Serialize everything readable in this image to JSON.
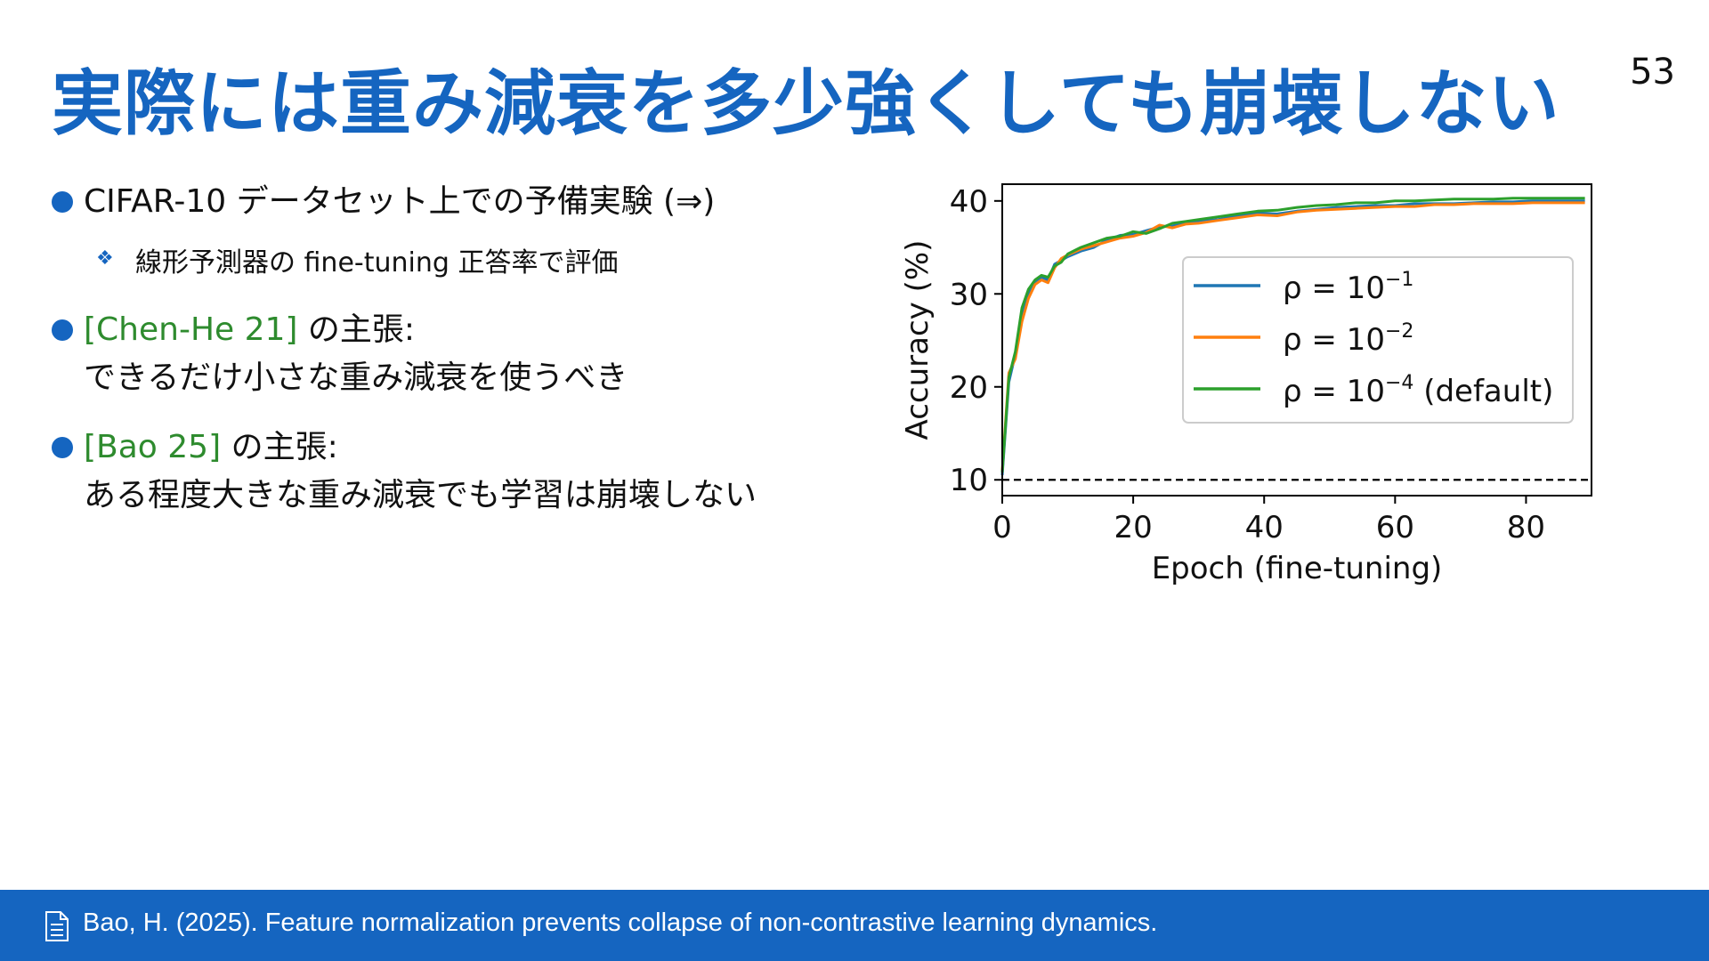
{
  "slide": {
    "title": "実際には重み減衰を多少強くしても崩壊しない",
    "page_number": "53"
  },
  "bullets": [
    {
      "text": "CIFAR-10 データセット上での予備実験 (⇒)"
    },
    {
      "cite": "[Chen-He 21]",
      "text": " の主張:",
      "line2": "できるだけ小さな重み減衰を使うべき"
    },
    {
      "cite": "[Bao 25]",
      "text": " の主張:",
      "line2": "ある程度大きな重み減衰でも学習は崩壊しない"
    }
  ],
  "sub_bullet": {
    "icon": "diamond-bullet-icon",
    "text": "線形予測器の fine-tuning 正答率で評価"
  },
  "footer": {
    "icon": "document-icon",
    "text": "Bao, H. (2025). Feature normalization prevents collapse of non-contrastive learning dynamics."
  },
  "colors": {
    "accent": "#1565c0",
    "citation": "#2e8b2e",
    "series_blue": "#1f77b4",
    "series_orange": "#ff7f0e",
    "series_green": "#2ca02c"
  },
  "chart_data": {
    "type": "line",
    "title": "",
    "xlabel": "Epoch (fine-tuning)",
    "ylabel": "Accuracy (%)",
    "xlim": [
      0,
      90
    ],
    "ylim": [
      8.3,
      41.8
    ],
    "xticks": [
      0,
      20,
      40,
      60,
      80
    ],
    "yticks": [
      10,
      20,
      30,
      40
    ],
    "grid": false,
    "legend_position": "center-right",
    "baseline": {
      "y": 10,
      "style": "dashed"
    },
    "x": [
      0,
      1,
      2,
      3,
      4,
      5,
      6,
      7,
      8,
      9,
      10,
      12,
      14,
      16,
      18,
      20,
      22,
      24,
      26,
      28,
      30,
      33,
      36,
      39,
      42,
      45,
      48,
      51,
      54,
      57,
      60,
      63,
      66,
      69,
      72,
      75,
      78,
      81,
      84,
      87,
      89
    ],
    "series": [
      {
        "label_base": "ρ = 10",
        "label_exp": "−1",
        "label_suffix": "",
        "color": "#1f77b4",
        "values": [
          10.5,
          20.5,
          23.5,
          27.5,
          30.0,
          31.2,
          31.8,
          31.5,
          33.2,
          33.6,
          34.0,
          34.6,
          35.0,
          35.8,
          36.3,
          36.4,
          36.8,
          37.2,
          37.3,
          37.7,
          37.8,
          38.0,
          38.4,
          38.7,
          38.6,
          38.9,
          39.1,
          39.3,
          39.4,
          39.5,
          39.5,
          39.7,
          39.7,
          39.7,
          39.8,
          39.9,
          39.9,
          40.0,
          40.0,
          40.0,
          40.0
        ]
      },
      {
        "label_base": "ρ = 10",
        "label_exp": "−2",
        "label_suffix": "",
        "color": "#ff7f0e",
        "values": [
          11.0,
          21.5,
          23.0,
          27.0,
          29.5,
          31.0,
          31.5,
          31.2,
          32.8,
          33.8,
          34.2,
          34.8,
          35.2,
          35.6,
          36.0,
          36.2,
          36.6,
          37.4,
          37.1,
          37.5,
          37.6,
          37.9,
          38.2,
          38.5,
          38.4,
          38.8,
          39.0,
          39.1,
          39.2,
          39.3,
          39.4,
          39.4,
          39.6,
          39.6,
          39.7,
          39.7,
          39.7,
          39.8,
          39.8,
          39.8,
          39.8
        ]
      },
      {
        "label_base": "ρ = 10",
        "label_exp": "−4",
        "label_suffix": " (default)",
        "color": "#2ca02c",
        "values": [
          10.8,
          21.0,
          23.8,
          28.5,
          30.5,
          31.5,
          32.0,
          31.8,
          33.0,
          33.4,
          34.3,
          35.0,
          35.5,
          36.0,
          36.2,
          36.7,
          36.5,
          37.0,
          37.6,
          37.8,
          38.0,
          38.3,
          38.6,
          38.9,
          39.0,
          39.3,
          39.5,
          39.6,
          39.8,
          39.8,
          40.0,
          40.0,
          40.1,
          40.2,
          40.2,
          40.2,
          40.3,
          40.3,
          40.3,
          40.3,
          40.3
        ]
      }
    ]
  }
}
